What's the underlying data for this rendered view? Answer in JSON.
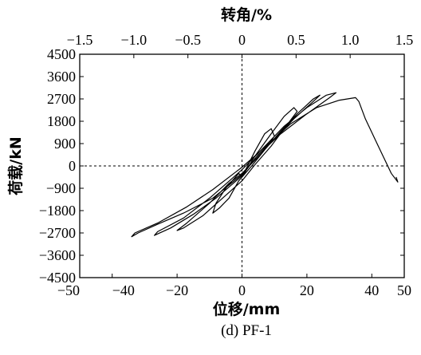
{
  "chart_data": {
    "type": "line",
    "title": "",
    "caption": "(d) PF-1",
    "xlabel": "位移/mm",
    "ylabel": "荷载/kN",
    "x2label": "转角/%",
    "xlim": [
      -50,
      50
    ],
    "ylim": [
      -4500,
      4500
    ],
    "x2lim": [
      -1.5,
      1.5
    ],
    "xticks": [
      "-50",
      "-40",
      "-20",
      "0",
      "20",
      "40",
      "50"
    ],
    "xtick_values": [
      -50,
      -40,
      -20,
      0,
      20,
      40,
      50
    ],
    "x2ticks": [
      "-1.5",
      "-1.0",
      "-0.5",
      "0",
      "0.5",
      "1.0",
      "1.5"
    ],
    "x2tick_values": [
      -1.5,
      -1.0,
      -0.5,
      0,
      0.5,
      1.0,
      1.5
    ],
    "yticks": [
      "4500",
      "3600",
      "2700",
      "1800",
      "900",
      "0",
      "-900",
      "-1800",
      "-2700",
      "-3600",
      "-4500"
    ],
    "ytick_values": [
      4500,
      3600,
      2700,
      1800,
      900,
      0,
      -900,
      -1800,
      -2700,
      -3600,
      -4500
    ],
    "grid": false,
    "reference_lines": [
      "x=0",
      "y=0"
    ],
    "series": [
      {
        "values": [
          [
            0,
            -450
          ],
          [
            4,
            600
          ],
          [
            7,
            1300
          ],
          [
            9,
            1500
          ],
          [
            10,
            1200
          ],
          [
            7,
            650
          ],
          [
            3,
            0
          ],
          [
            -1,
            -600
          ],
          [
            -4,
            -1300
          ],
          [
            -7,
            -1700
          ],
          [
            -9,
            -1900
          ],
          [
            -8,
            -1500
          ],
          [
            -5,
            -900
          ],
          [
            -1,
            -300
          ],
          [
            0,
            -450
          ],
          [
            4,
            400
          ],
          [
            9,
            1300
          ],
          [
            13,
            2000
          ],
          [
            16,
            2350
          ],
          [
            17,
            2200
          ],
          [
            13,
            1500
          ],
          [
            9,
            800
          ],
          [
            4,
            50
          ],
          [
            0,
            -600
          ],
          [
            -6,
            -1300
          ],
          [
            -12,
            -2000
          ],
          [
            -18,
            -2500
          ],
          [
            -20,
            -2600
          ],
          [
            -17,
            -2300
          ],
          [
            -10,
            -1500
          ],
          [
            -4,
            -700
          ],
          [
            0,
            -300
          ],
          [
            6,
            500
          ],
          [
            12,
            1400
          ],
          [
            17,
            2100
          ],
          [
            22,
            2700
          ],
          [
            24,
            2850
          ],
          [
            22,
            2600
          ],
          [
            16,
            1900
          ],
          [
            10,
            1100
          ],
          [
            4,
            300
          ],
          [
            0,
            -400
          ],
          [
            -8,
            -1300
          ],
          [
            -15,
            -1950
          ],
          [
            -22,
            -2500
          ],
          [
            -27,
            -2800
          ],
          [
            -26,
            -2650
          ],
          [
            -18,
            -2100
          ],
          [
            -10,
            -1300
          ],
          [
            -3,
            -500
          ],
          [
            0,
            -150
          ],
          [
            6,
            650
          ],
          [
            13,
            1600
          ],
          [
            20,
            2350
          ],
          [
            26,
            2850
          ],
          [
            29,
            2950
          ],
          [
            27,
            2750
          ],
          [
            20,
            2100
          ],
          [
            12,
            1300
          ],
          [
            5,
            450
          ],
          [
            0,
            -350
          ],
          [
            -9,
            -1300
          ],
          [
            -18,
            -1900
          ],
          [
            -26,
            -2350
          ],
          [
            -32,
            -2700
          ],
          [
            -34,
            -2850
          ],
          [
            -33,
            -2700
          ],
          [
            -26,
            -2300
          ],
          [
            -17,
            -1650
          ],
          [
            -9,
            -950
          ],
          [
            -2,
            -250
          ],
          [
            0,
            -50
          ],
          [
            7,
            750
          ],
          [
            15,
            1700
          ],
          [
            23,
            2350
          ],
          [
            30,
            2650
          ],
          [
            35,
            2750
          ],
          [
            36,
            2600
          ],
          [
            38,
            1900
          ],
          [
            42,
            800
          ],
          [
            46,
            -300
          ],
          [
            48,
            -650
          ],
          [
            47.5,
            -450
          ]
        ]
      }
    ]
  }
}
